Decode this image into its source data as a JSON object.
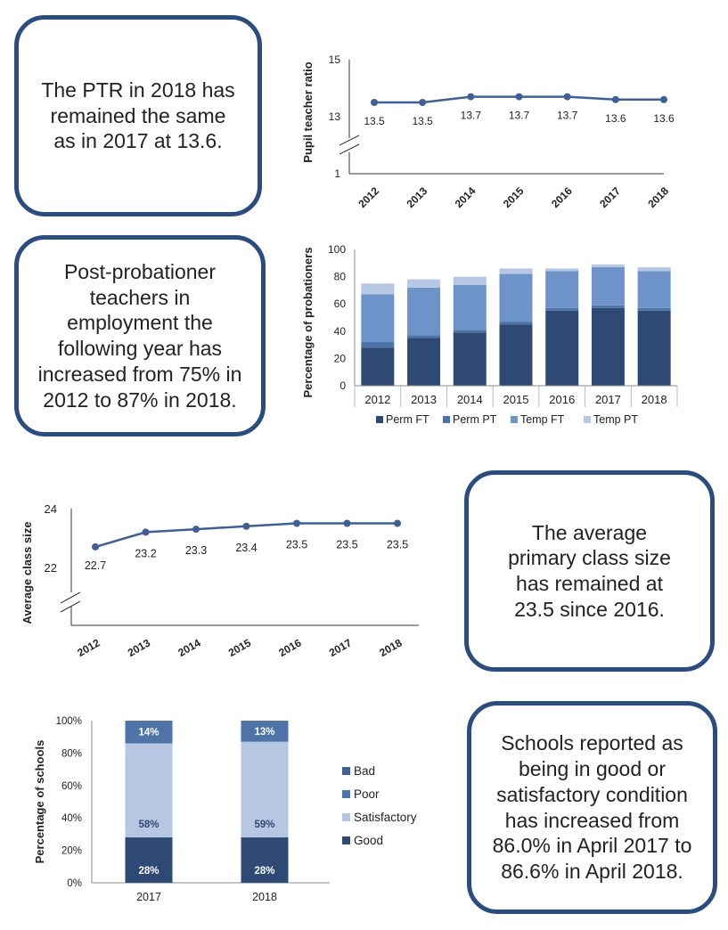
{
  "callouts": {
    "ptr": "The PTR in 2018 has remained the same as in 2017 at 13.6.",
    "probationers": "Post-probationer teachers in employment the following year has increased from 75% in 2012 to 87% in 2018.",
    "class_size": "The average primary class size has remained at 23.5 since 2016.",
    "schools": "Schools reported as being in good or satisfactory condition has increased from 86.0% in April 2017 to 86.6% in April 2018."
  },
  "colors": {
    "dark": "#2e4a74",
    "mid": "#4e73a8",
    "light": "#6d93c9",
    "pale": "#b6c7e3",
    "line": "#3f5f95"
  },
  "chart_data": [
    {
      "type": "line",
      "id": "ptr",
      "x": [
        "2012",
        "2013",
        "2014",
        "2015",
        "2016",
        "2017",
        "2018"
      ],
      "values": [
        13.5,
        13.5,
        13.7,
        13.7,
        13.7,
        13.6,
        13.6
      ],
      "labels": [
        "13.5",
        "13.5",
        "13.7",
        "13.7",
        "13.7",
        "13.6",
        "13.6"
      ],
      "ylabel": "Pupil teacher ratio",
      "yticks": [
        "15",
        "13",
        "1"
      ],
      "ylim": [
        12.5,
        15
      ],
      "axis_break": true
    },
    {
      "type": "bar",
      "stacked": true,
      "id": "probationers",
      "categories": [
        "2012",
        "2013",
        "2014",
        "2015",
        "2016",
        "2017",
        "2018"
      ],
      "series": [
        {
          "name": "Perm FT",
          "values": [
            28,
            35,
            39,
            45,
            55,
            57,
            55
          ]
        },
        {
          "name": "Perm PT",
          "values": [
            4,
            2,
            2,
            2,
            2,
            2,
            2
          ]
        },
        {
          "name": "Temp FT",
          "values": [
            35,
            35,
            33,
            35,
            27,
            28,
            27
          ]
        },
        {
          "name": "Temp PT",
          "values": [
            8,
            6,
            6,
            4,
            2,
            2,
            3
          ]
        }
      ],
      "ylabel": "Percentage of probationers",
      "yticks": [
        "0",
        "20",
        "40",
        "60",
        "80",
        "100"
      ],
      "ylim": [
        0,
        100
      ]
    },
    {
      "type": "line",
      "id": "class_size",
      "x": [
        "2012",
        "2013",
        "2014",
        "2015",
        "2016",
        "2017",
        "2018"
      ],
      "values": [
        22.7,
        23.2,
        23.3,
        23.4,
        23.5,
        23.5,
        23.5
      ],
      "labels": [
        "22.7",
        "23.2",
        "23.3",
        "23.4",
        "23.5",
        "23.5",
        "23.5"
      ],
      "ylabel": "Average class size",
      "yticks": [
        "24",
        "22"
      ],
      "ylim": [
        22,
        24
      ],
      "axis_break": true
    },
    {
      "type": "bar",
      "stacked": true,
      "id": "schools",
      "categories": [
        "2017",
        "2018"
      ],
      "series": [
        {
          "name": "Good",
          "values": [
            28,
            28
          ],
          "labels": [
            "28%",
            "28%"
          ]
        },
        {
          "name": "Satisfactory",
          "values": [
            58,
            59
          ],
          "labels": [
            "58%",
            "59%"
          ]
        },
        {
          "name": "Poor",
          "values": [
            14,
            13
          ],
          "labels": [
            "14%",
            "13%"
          ]
        },
        {
          "name": "Bad",
          "values": [
            0,
            0
          ],
          "labels": [
            "",
            ""
          ]
        }
      ],
      "legend_order": [
        "Bad",
        "Poor",
        "Satisfactory",
        "Good"
      ],
      "ylabel": "Percentage of schools",
      "yticks": [
        "0%",
        "20%",
        "40%",
        "60%",
        "80%",
        "100%"
      ],
      "ylim": [
        0,
        100
      ]
    }
  ]
}
